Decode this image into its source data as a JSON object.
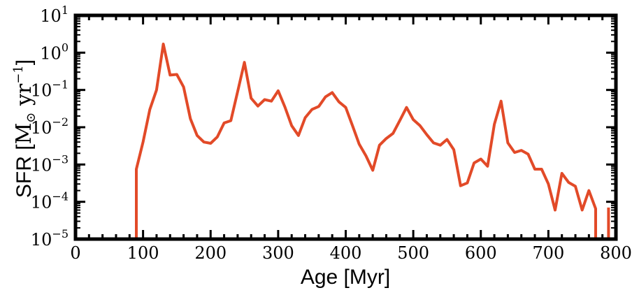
{
  "chart_data": {
    "type": "line",
    "title": "",
    "xlabel": "Age [Myr]",
    "ylabel_prefix": "SFR [",
    "ylabel_unit_main": "M",
    "ylabel_unit_sub": "⊙",
    "ylabel_unit_rest": " yr",
    "ylabel_unit_exp": "−1",
    "ylabel_suffix": "]",
    "xlim": [
      0,
      800
    ],
    "ylim": [
      1e-05,
      10
    ],
    "yscale": "log",
    "grid": false,
    "legend": "none",
    "color": "#e24a28",
    "x_ticks": [
      0,
      100,
      200,
      300,
      400,
      500,
      600,
      700,
      800
    ],
    "x_tick_labels": [
      "0",
      "100",
      "200",
      "300",
      "400",
      "500",
      "600",
      "700",
      "800"
    ],
    "y_tick_exponents": [
      -5,
      -4,
      -3,
      -2,
      -1,
      0,
      1
    ],
    "y_tick_base": "10",
    "series": [
      {
        "x": [
          90,
          90,
          100,
          110,
          120,
          130,
          140,
          150,
          160,
          170,
          180,
          190,
          200,
          210,
          220,
          230,
          240,
          250,
          260,
          270,
          280,
          290,
          300,
          310,
          320,
          330,
          340,
          350,
          360,
          370,
          380,
          390,
          400,
          410,
          420,
          430,
          440,
          450,
          460,
          470,
          480,
          490,
          500,
          510,
          520,
          530,
          540,
          550,
          560,
          570,
          580,
          590,
          600,
          610,
          620,
          630,
          640,
          650,
          660,
          670,
          680,
          690,
          700,
          710,
          720,
          730,
          740,
          750,
          760,
          770,
          770
        ],
        "y": [
          1e-05,
          0.00075,
          0.004,
          0.03,
          0.1,
          1.7,
          0.25,
          0.26,
          0.12,
          0.017,
          0.006,
          0.004,
          0.0037,
          0.0055,
          0.013,
          0.015,
          0.09,
          0.55,
          0.06,
          0.037,
          0.055,
          0.05,
          0.095,
          0.035,
          0.011,
          0.006,
          0.018,
          0.03,
          0.036,
          0.065,
          0.085,
          0.048,
          0.034,
          0.011,
          0.0035,
          0.0017,
          0.0007,
          0.0033,
          0.005,
          0.0068,
          0.015,
          0.034,
          0.016,
          0.011,
          0.0063,
          0.0038,
          0.0033,
          0.0047,
          0.0025,
          0.00027,
          0.00032,
          0.0011,
          0.0014,
          0.0009,
          0.012,
          0.05,
          0.0038,
          0.0021,
          0.0024,
          0.0019,
          0.00075,
          0.00075,
          0.0003,
          6e-05,
          0.00058,
          0.00033,
          0.00026,
          6e-05,
          0.0002,
          6.5e-05,
          1e-05
        ]
      },
      {
        "x": [
          789,
          789
        ],
        "y": [
          1e-05,
          7e-05
        ]
      }
    ]
  }
}
